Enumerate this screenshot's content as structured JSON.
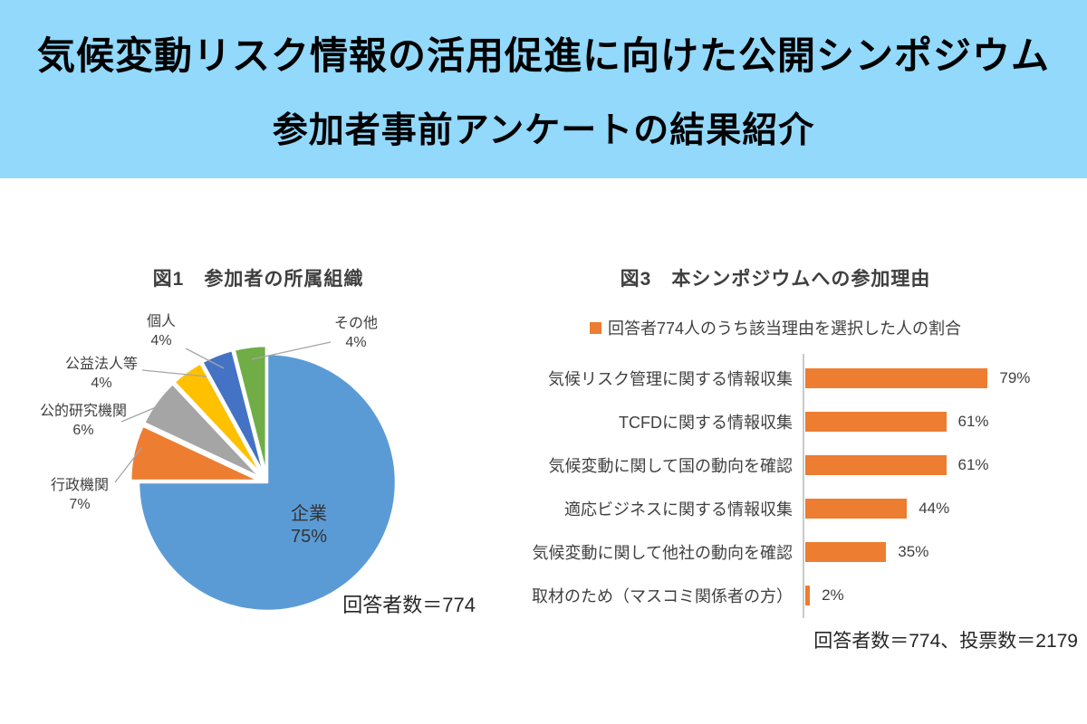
{
  "header": {
    "line1": "気候変動リスク情報の活用促進に向けた公開シンポジウム",
    "line2": "参加者事前アンケートの結果紹介",
    "background_color": "#92D9FC"
  },
  "chart_data": [
    {
      "type": "pie",
      "title": "図1　参加者の所属組織",
      "note": "回答者数＝774",
      "unit": "%",
      "legend_position": "none",
      "segments": [
        {
          "label": "企業",
          "value": 75,
          "color": "#5B9BD5"
        },
        {
          "label": "行政機関",
          "value": 7,
          "color": "#ED7D31"
        },
        {
          "label": "公的研究機関",
          "value": 6,
          "color": "#A5A5A5"
        },
        {
          "label": "公益法人等",
          "value": 4,
          "color": "#FFC000"
        },
        {
          "label": "個人",
          "value": 4,
          "color": "#4472C4"
        },
        {
          "label": "その他",
          "value": 4,
          "color": "#70AD47"
        }
      ]
    },
    {
      "type": "bar",
      "orientation": "horizontal",
      "title": "図3　本シンポジウムへの参加理由",
      "legend": {
        "label": "回答者774人のうち該当理由を選択した人の割合",
        "color": "#ED7D31"
      },
      "categories": [
        "気候リスク管理に関する情報収集",
        "TCFDに関する情報収集",
        "気候変動に関して国の動向を確認",
        "適応ビジネスに関する情報収集",
        "気候変動に関して他社の動向を確認",
        "取材のため（マスコミ関係者の方）"
      ],
      "values": [
        79,
        61,
        61,
        44,
        35,
        2
      ],
      "unit": "%",
      "bar_color": "#ED7D31",
      "xlim": [
        0,
        100
      ],
      "grid": false,
      "note": "回答者数＝774、投票数＝2179"
    }
  ]
}
